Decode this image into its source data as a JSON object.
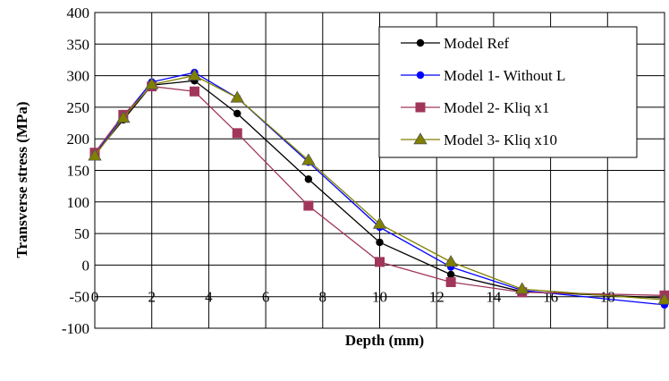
{
  "chart_data": {
    "type": "line",
    "title": "",
    "xlabel": "Depth (mm)",
    "ylabel": "Transverse stress (MPa)",
    "xlim": [
      0,
      20
    ],
    "ylim": [
      -100,
      400
    ],
    "xticks": [
      0,
      2,
      4,
      6,
      8,
      10,
      12,
      14,
      16,
      18
    ],
    "xtick_labels": [
      "0",
      "2",
      "4",
      "6",
      "8",
      "10",
      "12",
      "14",
      "16",
      "18"
    ],
    "yticks": [
      400,
      350,
      300,
      250,
      200,
      150,
      100,
      50,
      0,
      -50,
      -100
    ],
    "ytick_labels": [
      "400",
      "350",
      "300",
      "250",
      "200",
      "150",
      "100",
      "50",
      "0",
      "-50",
      "-100"
    ],
    "grid": true,
    "legend_position": "top-right",
    "series": [
      {
        "name": "Model Ref",
        "color": "#000000",
        "marker": "circle",
        "x": [
          0,
          1,
          2,
          3.5,
          5,
          7.5,
          10,
          12.5,
          15,
          20
        ],
        "y": [
          175,
          230,
          285,
          292,
          240,
          136,
          36,
          -15,
          -42,
          -52
        ]
      },
      {
        "name": "Model 1- Without L",
        "color": "#0000ff",
        "marker": "circle",
        "x": [
          0,
          1,
          2,
          3.5,
          5,
          7.5,
          10,
          12.5,
          15,
          20
        ],
        "y": [
          175,
          235,
          290,
          305,
          265,
          163,
          60,
          -3,
          -40,
          -63
        ]
      },
      {
        "name": "Model 2- Kliq x1",
        "color": "#a0365a",
        "marker": "square",
        "x": [
          0,
          1,
          2,
          3.5,
          5,
          7.5,
          10,
          12.5,
          15,
          20
        ],
        "y": [
          178,
          238,
          283,
          275,
          209,
          94,
          5,
          -27,
          -43,
          -48
        ]
      },
      {
        "name": "Model 3- Kliq x10",
        "color": "#808000",
        "marker": "triangle",
        "x": [
          0,
          1,
          2,
          3.5,
          5,
          7.5,
          10,
          12.5,
          15,
          20
        ],
        "y": [
          173,
          233,
          286,
          300,
          265,
          166,
          65,
          5,
          -38,
          -55
        ]
      }
    ]
  }
}
